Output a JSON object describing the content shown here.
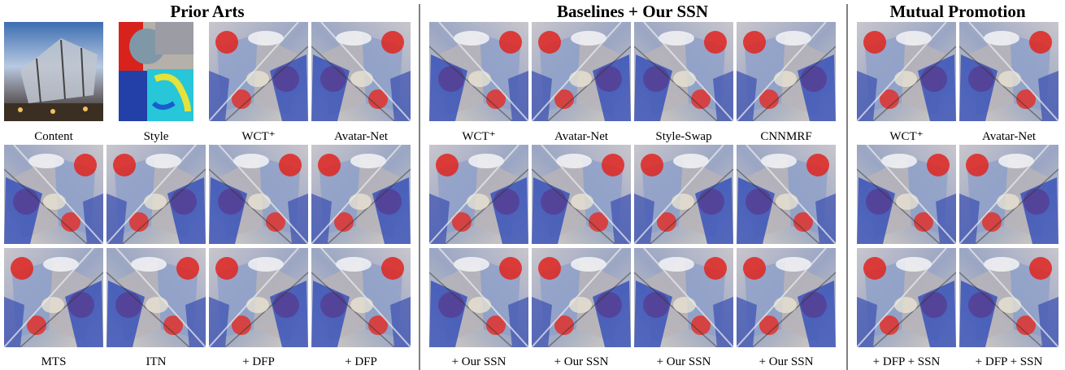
{
  "groups": [
    {
      "title": "Prior Arts",
      "top_labels": [
        "Content",
        "Style",
        "WCT⁺",
        "Avatar-Net"
      ],
      "bottom_labels": [
        "MTS",
        "ITN",
        "+ DFP",
        "+ DFP"
      ]
    },
    {
      "title": "Baselines + Our SSN",
      "top_labels": [
        "WCT⁺",
        "Avatar-Net",
        "Style-Swap",
        "CNNMRF"
      ],
      "bottom_labels": [
        "+ Our SSN",
        "+ Our SSN",
        "+ Our SSN",
        "+ Our SSN"
      ]
    },
    {
      "title": "Mutual Promotion",
      "top_labels": [
        "WCT⁺",
        "Avatar-Net"
      ],
      "bottom_labels": [
        "+ DFP + SSN",
        "+ DFP + SSN"
      ]
    }
  ]
}
